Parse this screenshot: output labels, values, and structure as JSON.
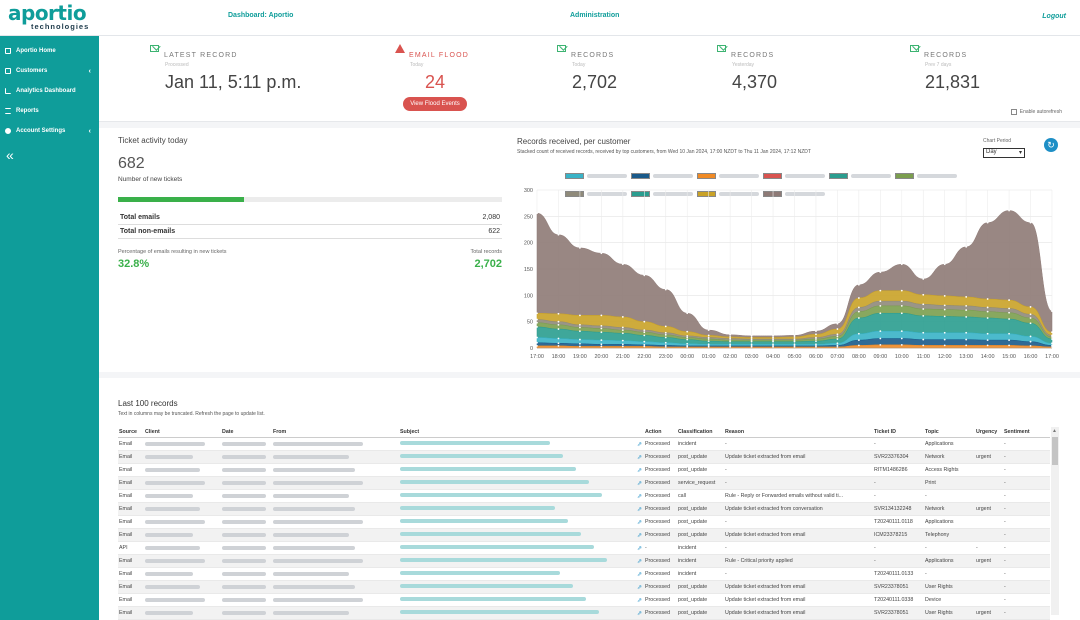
{
  "header": {
    "logo_main": "aportio",
    "logo_sub": "technologies",
    "nav_dashboard": "Dashboard: Aportio",
    "nav_admin": "Administration",
    "logout": "Logout"
  },
  "sidebar": {
    "items": [
      {
        "label": "Aportio Home",
        "icon": "home-icon"
      },
      {
        "label": "Customers",
        "icon": "folder-icon",
        "arrow": "‹"
      },
      {
        "label": "Analytics Dashboard",
        "icon": "chart-icon"
      },
      {
        "label": "Reports",
        "icon": "list-icon"
      },
      {
        "label": "Account Settings",
        "icon": "gear-icon",
        "arrow": "‹"
      }
    ],
    "collapse": "«"
  },
  "stats": {
    "latest": {
      "label": "LATEST RECORD",
      "sub": "Processed",
      "value": "Jan 11, 5:11 p.m."
    },
    "flood": {
      "label": "EMAIL FLOOD",
      "sub": "Today",
      "value": "24",
      "button": "View Flood Events"
    },
    "today": {
      "label": "RECORDS",
      "sub": "Today",
      "value": "2,702"
    },
    "yesterday": {
      "label": "RECORDS",
      "sub": "Yesterday",
      "value": "4,370"
    },
    "prev7": {
      "label": "RECORDS",
      "sub": "Prev 7 days",
      "value": "21,831"
    },
    "autorefresh": "Enable autorefresh"
  },
  "tickets": {
    "title": "Ticket activity today",
    "count": "682",
    "count_label": "Number of new tickets",
    "progress_fraction": 0.328,
    "total_emails_label": "Total emails",
    "total_emails": "2,080",
    "total_non_emails_label": "Total non-emails",
    "total_non_emails": "622",
    "pct_label": "Percentage of emails resulting in new tickets",
    "total_records_label": "Total records",
    "pct_value": "32.8%",
    "total_records": "2,702"
  },
  "chart_panel": {
    "title": "Records received, per customer",
    "subtitle": "Stacked count of received records, received by top customers, from Wed 10 Jan 2024, 17:00 NZDT to Thu 11 Jan 2024, 17:12 NZDT",
    "period_label": "Chart Period",
    "period_value": "Day",
    "refresh_icon": "↻"
  },
  "chart_data": {
    "type": "area",
    "stacked": true,
    "x": [
      "17:00",
      "18:00",
      "19:00",
      "20:00",
      "21:00",
      "22:00",
      "23:00",
      "00:00",
      "01:00",
      "02:00",
      "03:00",
      "04:00",
      "05:00",
      "06:00",
      "07:00",
      "08:00",
      "09:00",
      "10:00",
      "11:00",
      "12:00",
      "13:00",
      "14:00",
      "15:00",
      "16:00",
      "17:00"
    ],
    "ylim": [
      0,
      300
    ],
    "yticks": [
      0,
      50,
      100,
      150,
      200,
      250,
      300
    ],
    "grid": true,
    "legend_position": "top",
    "series": [
      {
        "color": "#f08a24",
        "values": [
          4,
          4,
          3,
          3,
          3,
          3,
          2,
          2,
          2,
          2,
          2,
          2,
          2,
          2,
          2,
          5,
          6,
          6,
          5,
          5,
          5,
          5,
          5,
          4,
          2
        ]
      },
      {
        "color": "#1a5a8a",
        "values": [
          6,
          5,
          5,
          4,
          4,
          3,
          3,
          2,
          2,
          2,
          2,
          2,
          2,
          2,
          3,
          10,
          12,
          12,
          11,
          11,
          11,
          10,
          10,
          8,
          3
        ]
      },
      {
        "color": "#39b3c7",
        "values": [
          10,
          9,
          8,
          8,
          7,
          6,
          5,
          4,
          3,
          3,
          3,
          3,
          3,
          3,
          4,
          12,
          14,
          14,
          13,
          13,
          13,
          12,
          12,
          10,
          4
        ]
      },
      {
        "color": "#2a9d8f",
        "values": [
          20,
          18,
          16,
          15,
          14,
          12,
          10,
          8,
          6,
          5,
          5,
          5,
          5,
          6,
          8,
          30,
          34,
          34,
          32,
          31,
          30,
          30,
          28,
          25,
          8
        ]
      },
      {
        "color": "#7b9e4e",
        "values": [
          8,
          8,
          7,
          7,
          6,
          6,
          5,
          4,
          4,
          3,
          3,
          3,
          3,
          4,
          5,
          12,
          14,
          14,
          13,
          13,
          13,
          12,
          12,
          10,
          4
        ]
      },
      {
        "color": "#8f8a7a",
        "values": [
          6,
          6,
          5,
          5,
          5,
          4,
          4,
          3,
          3,
          3,
          2,
          2,
          2,
          3,
          4,
          8,
          9,
          9,
          9,
          8,
          8,
          8,
          8,
          7,
          3
        ]
      },
      {
        "color": "#c9a227",
        "values": [
          12,
          15,
          18,
          20,
          20,
          16,
          12,
          8,
          4,
          3,
          3,
          3,
          4,
          6,
          10,
          18,
          20,
          20,
          18,
          18,
          17,
          16,
          16,
          14,
          6
        ]
      },
      {
        "color": "#8e7a76",
        "values": [
          190,
          150,
          128,
          118,
          100,
          88,
          70,
          35,
          10,
          4,
          3,
          3,
          3,
          6,
          10,
          25,
          35,
          50,
          30,
          60,
          95,
          145,
          170,
          160,
          40
        ]
      }
    ]
  },
  "records": {
    "title": "Last 100 records",
    "note": "Text in columns may be truncated. Refresh the page to update list.",
    "columns": [
      "Source",
      "Client",
      "Date",
      "From",
      "Subject",
      "Action",
      "Classification",
      "Reason",
      "Ticket ID",
      "Topic",
      "Urgency",
      "Sentiment"
    ],
    "rows": [
      {
        "source": "Email",
        "action": "Processed",
        "classification": "incident",
        "reason": "-",
        "ticket": "-",
        "topic": "Applications",
        "urgency": "",
        "sentiment": "-"
      },
      {
        "source": "Email",
        "action": "Processed",
        "classification": "post_update",
        "reason": "Update ticket extracted from email",
        "ticket": "SVR23376304",
        "topic": "Network",
        "urgency": "urgent",
        "sentiment": "-"
      },
      {
        "source": "Email",
        "action": "Processed",
        "classification": "post_update",
        "reason": "-",
        "ticket": "RITM1486286",
        "topic": "Access Rights",
        "urgency": "",
        "sentiment": "-"
      },
      {
        "source": "Email",
        "action": "Processed",
        "classification": "service_request",
        "reason": "-",
        "ticket": "-",
        "topic": "Print",
        "urgency": "",
        "sentiment": "-"
      },
      {
        "source": "Email",
        "action": "Processed",
        "classification": "call",
        "reason": "Rule - Reply or Forwarded emails without valid ti...",
        "ticket": "-",
        "topic": "-",
        "urgency": "",
        "sentiment": "-"
      },
      {
        "source": "Email",
        "action": "Processed",
        "classification": "post_update",
        "reason": "Update ticket extracted from conversation",
        "ticket": "SVR134132248",
        "topic": "Network",
        "urgency": "urgent",
        "sentiment": "-"
      },
      {
        "source": "Email",
        "action": "Processed",
        "classification": "post_update",
        "reason": "-",
        "ticket": "T20240111.0118",
        "topic": "Applications",
        "urgency": "",
        "sentiment": "-"
      },
      {
        "source": "Email",
        "action": "Processed",
        "classification": "post_update",
        "reason": "Update ticket extracted from email",
        "ticket": "ICM23378215",
        "topic": "Telephony",
        "urgency": "",
        "sentiment": "-"
      },
      {
        "source": "API",
        "action": "-",
        "classification": "incident",
        "reason": "-",
        "ticket": "-",
        "topic": "-",
        "urgency": "-",
        "sentiment": "-"
      },
      {
        "source": "Email",
        "action": "Processed",
        "classification": "incident",
        "reason": "Rule - Critical priority applied",
        "ticket": "-",
        "topic": "Applications",
        "urgency": "urgent",
        "sentiment": "-"
      },
      {
        "source": "Email",
        "action": "Processed",
        "classification": "incident",
        "reason": "-",
        "ticket": "T20240111.0133",
        "topic": "-",
        "urgency": "",
        "sentiment": "-"
      },
      {
        "source": "Email",
        "action": "Processed",
        "classification": "post_update",
        "reason": "Update ticket extracted from email",
        "ticket": "SVR23378051",
        "topic": "User Rights",
        "urgency": "",
        "sentiment": "-"
      },
      {
        "source": "Email",
        "action": "Processed",
        "classification": "post_update",
        "reason": "Update ticket extracted from email",
        "ticket": "T20240111.0338",
        "topic": "Device",
        "urgency": "",
        "sentiment": "-"
      },
      {
        "source": "Email",
        "action": "Processed",
        "classification": "post_update",
        "reason": "Update ticket extracted from email",
        "ticket": "SVR23378051",
        "topic": "User Rights",
        "urgency": "urgent",
        "sentiment": "-"
      }
    ]
  }
}
